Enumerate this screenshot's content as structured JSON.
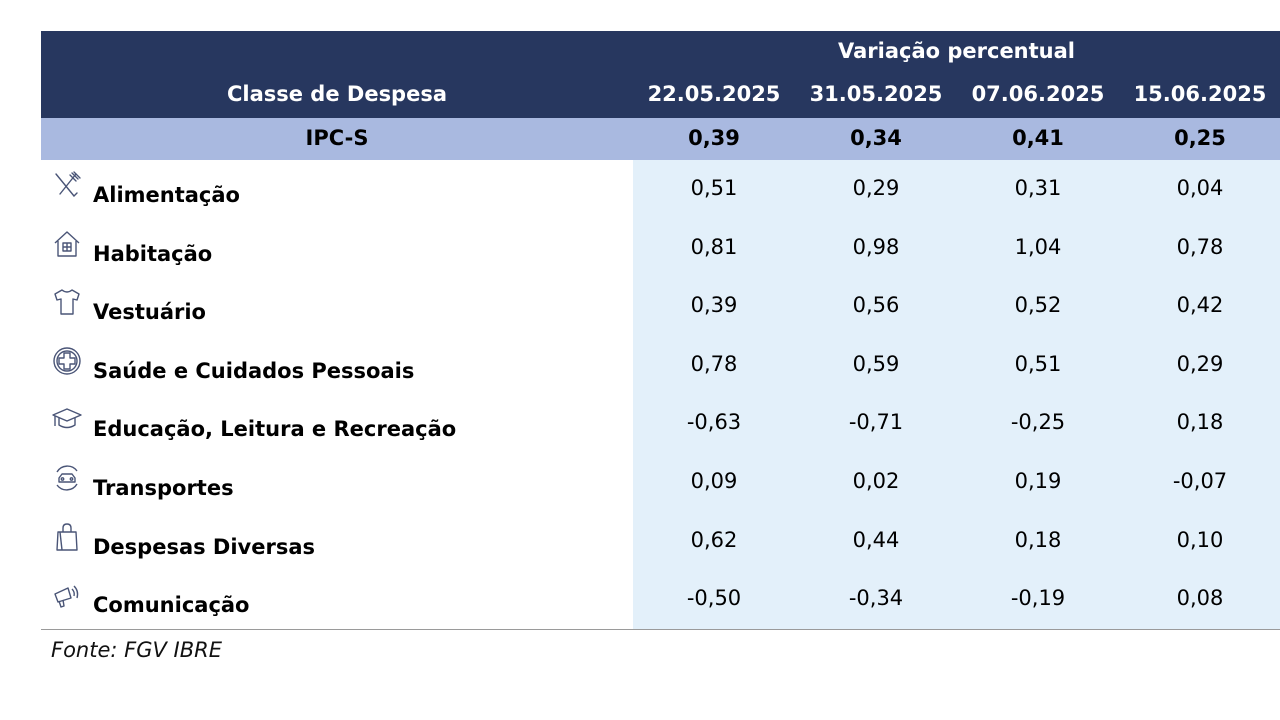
{
  "table": {
    "group_title": "Variação percentual",
    "class_header": "Classe de Despesa",
    "dates": [
      "22.05.2025",
      "31.05.2025",
      "07.06.2025",
      "15.06.2025"
    ],
    "summary": {
      "label": "IPC-S",
      "values": [
        "0,39",
        "0,34",
        "0,41",
        "0,25"
      ]
    },
    "rows": [
      {
        "icon": "fork-knife-icon",
        "label": "Alimentação",
        "values": [
          "0,51",
          "0,29",
          "0,31",
          "0,04"
        ]
      },
      {
        "icon": "house-icon",
        "label": "Habitação",
        "values": [
          "0,81",
          "0,98",
          "1,04",
          "0,78"
        ]
      },
      {
        "icon": "tshirt-icon",
        "label": "Vestuário",
        "values": [
          "0,39",
          "0,56",
          "0,52",
          "0,42"
        ]
      },
      {
        "icon": "medical-cross-icon",
        "label": "Saúde e Cuidados Pessoais",
        "values": [
          "0,78",
          "0,59",
          "0,51",
          "0,29"
        ]
      },
      {
        "icon": "graduation-cap-icon",
        "label": "Educação, Leitura e Recreação",
        "values": [
          "-0,63",
          "-0,71",
          "-0,25",
          "0,18"
        ]
      },
      {
        "icon": "car-icon",
        "label": "Transportes",
        "values": [
          "0,09",
          "0,02",
          "0,19",
          "-0,07"
        ]
      },
      {
        "icon": "shopping-bag-icon",
        "label": "Despesas Diversas",
        "values": [
          "0,62",
          "0,44",
          "0,18",
          "0,10"
        ]
      },
      {
        "icon": "megaphone-icon",
        "label": "Comunicação",
        "values": [
          "-0,50",
          "-0,34",
          "-0,19",
          "0,08"
        ]
      }
    ]
  },
  "source": "Fonte: FGV IBRE",
  "colors": {
    "header_bg": "#27375f",
    "summary_bg": "#a9b9e0",
    "values_bg": "#e3f0fa",
    "icon_stroke": "#4a5577"
  }
}
